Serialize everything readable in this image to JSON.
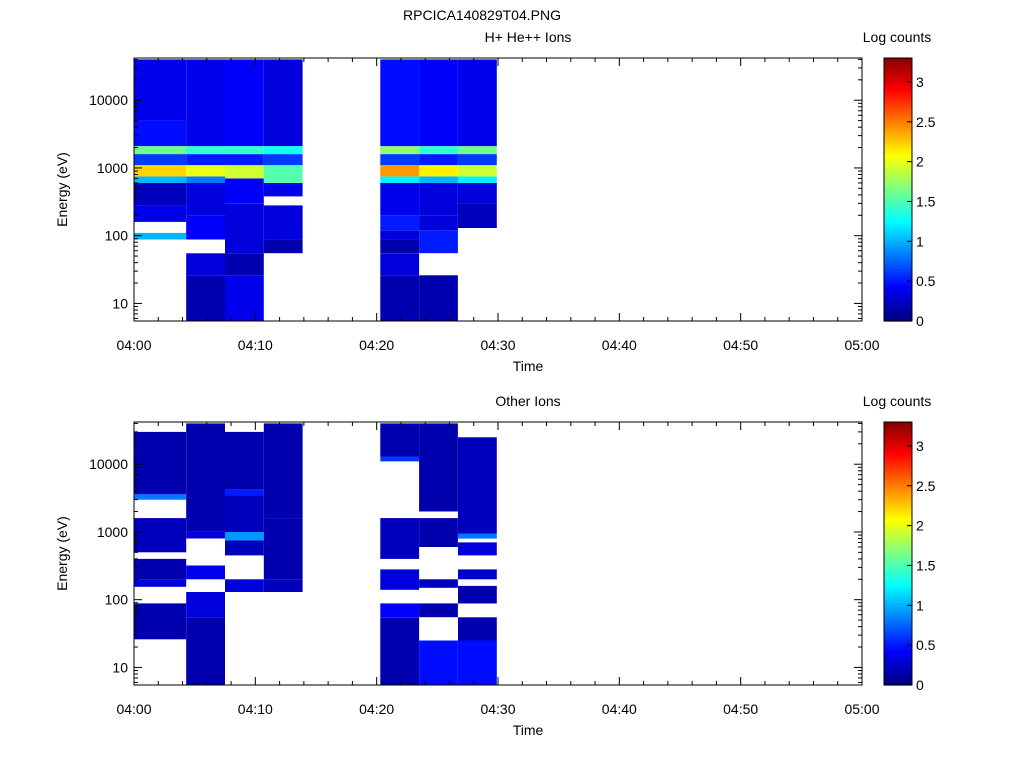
{
  "title": "RPCICA140829T04.PNG",
  "chart_data": [
    {
      "type": "heatmap",
      "title": "H+ He++ Ions",
      "xlabel": "Time",
      "ylabel": "Energy (eV)",
      "x_range": [
        "04:00",
        "05:00"
      ],
      "x_ticks": [
        "04:00",
        "04:10",
        "04:20",
        "04:30",
        "04:40",
        "04:50",
        "05:00"
      ],
      "y_scale": "log",
      "y_range": [
        5.5,
        42000
      ],
      "y_ticks": [
        "10",
        "100",
        "1000",
        "10000"
      ],
      "colorbar": {
        "label": "Log counts",
        "range": [
          0,
          3.3
        ],
        "ticks": [
          "0",
          "0.5",
          "1",
          "1.5",
          "2",
          "2.5",
          "3"
        ]
      },
      "columns": [
        {
          "t_start": 0.0,
          "t_end": 4.3,
          "cells": [
            {
              "e_min": 88,
              "e_max": 110,
              "level": 1.0
            },
            {
              "e_min": 160,
              "e_max": 280,
              "level": 0.35
            },
            {
              "e_min": 280,
              "e_max": 600,
              "level": 0.2
            },
            {
              "e_min": 600,
              "e_max": 750,
              "level": 1.0
            },
            {
              "e_min": 750,
              "e_max": 1100,
              "level": 2.2
            },
            {
              "e_min": 1100,
              "e_max": 1600,
              "level": 0.6
            },
            {
              "e_min": 1600,
              "e_max": 2100,
              "level": 1.6
            },
            {
              "e_min": 2100,
              "e_max": 5000,
              "level": 0.45
            },
            {
              "e_min": 5000,
              "e_max": 40000,
              "level": 0.35
            }
          ]
        },
        {
          "t_start": 4.3,
          "t_end": 7.5,
          "cells": [
            {
              "e_min": 5.5,
              "e_max": 26,
              "level": 0.15
            },
            {
              "e_min": 26,
              "e_max": 55,
              "level": 0.3
            },
            {
              "e_min": 88,
              "e_max": 200,
              "level": 0.4
            },
            {
              "e_min": 200,
              "e_max": 600,
              "level": 0.3
            },
            {
              "e_min": 600,
              "e_max": 750,
              "level": 0.8
            },
            {
              "e_min": 750,
              "e_max": 1100,
              "level": 2.0
            },
            {
              "e_min": 1100,
              "e_max": 1600,
              "level": 0.5
            },
            {
              "e_min": 1600,
              "e_max": 2100,
              "level": 1.4
            },
            {
              "e_min": 2100,
              "e_max": 40000,
              "level": 0.35
            }
          ]
        },
        {
          "t_start": 7.5,
          "t_end": 10.7,
          "cells": [
            {
              "e_min": 5.5,
              "e_max": 26,
              "level": 0.35
            },
            {
              "e_min": 26,
              "e_max": 55,
              "level": 0.15
            },
            {
              "e_min": 55,
              "e_max": 300,
              "level": 0.3
            },
            {
              "e_min": 300,
              "e_max": 700,
              "level": 0.4
            },
            {
              "e_min": 700,
              "e_max": 1100,
              "level": 1.9
            },
            {
              "e_min": 1100,
              "e_max": 1600,
              "level": 0.5
            },
            {
              "e_min": 1600,
              "e_max": 2100,
              "level": 1.4
            },
            {
              "e_min": 2100,
              "e_max": 40000,
              "level": 0.4
            }
          ]
        },
        {
          "t_start": 10.7,
          "t_end": 13.9,
          "cells": [
            {
              "e_min": 55,
              "e_max": 88,
              "level": 0.15
            },
            {
              "e_min": 88,
              "e_max": 280,
              "level": 0.3
            },
            {
              "e_min": 380,
              "e_max": 600,
              "level": 0.35
            },
            {
              "e_min": 600,
              "e_max": 1100,
              "level": 1.5
            },
            {
              "e_min": 1100,
              "e_max": 1600,
              "level": 0.6
            },
            {
              "e_min": 1600,
              "e_max": 2100,
              "level": 1.3
            },
            {
              "e_min": 2100,
              "e_max": 40000,
              "level": 0.3
            }
          ]
        },
        {
          "t_start": 20.3,
          "t_end": 23.5,
          "cells": [
            {
              "e_min": 5.5,
              "e_max": 26,
              "level": 0.15
            },
            {
              "e_min": 26,
              "e_max": 55,
              "level": 0.3
            },
            {
              "e_min": 55,
              "e_max": 88,
              "level": 0.15
            },
            {
              "e_min": 88,
              "e_max": 120,
              "level": 0.3
            },
            {
              "e_min": 120,
              "e_max": 200,
              "level": 0.5
            },
            {
              "e_min": 200,
              "e_max": 600,
              "level": 0.35
            },
            {
              "e_min": 600,
              "e_max": 750,
              "level": 1.2
            },
            {
              "e_min": 750,
              "e_max": 1100,
              "level": 2.4
            },
            {
              "e_min": 1100,
              "e_max": 1600,
              "level": 0.6
            },
            {
              "e_min": 1600,
              "e_max": 2100,
              "level": 1.7
            },
            {
              "e_min": 2100,
              "e_max": 40000,
              "level": 0.45
            }
          ]
        },
        {
          "t_start": 23.5,
          "t_end": 26.7,
          "cells": [
            {
              "e_min": 5.5,
              "e_max": 26,
              "level": 0.15
            },
            {
              "e_min": 55,
              "e_max": 120,
              "level": 0.5
            },
            {
              "e_min": 120,
              "e_max": 200,
              "level": 0.3
            },
            {
              "e_min": 200,
              "e_max": 600,
              "level": 0.3
            },
            {
              "e_min": 600,
              "e_max": 750,
              "level": 1.0
            },
            {
              "e_min": 750,
              "e_max": 1100,
              "level": 2.1
            },
            {
              "e_min": 1100,
              "e_max": 1600,
              "level": 0.5
            },
            {
              "e_min": 1600,
              "e_max": 2100,
              "level": 1.4
            },
            {
              "e_min": 2100,
              "e_max": 40000,
              "level": 0.4
            }
          ]
        },
        {
          "t_start": 26.7,
          "t_end": 29.9,
          "cells": [
            {
              "e_min": 130,
              "e_max": 300,
              "level": 0.2
            },
            {
              "e_min": 300,
              "e_max": 600,
              "level": 0.3
            },
            {
              "e_min": 600,
              "e_max": 750,
              "level": 1.2
            },
            {
              "e_min": 750,
              "e_max": 1100,
              "level": 1.9
            },
            {
              "e_min": 1100,
              "e_max": 1600,
              "level": 0.6
            },
            {
              "e_min": 1600,
              "e_max": 2100,
              "level": 1.6
            },
            {
              "e_min": 2100,
              "e_max": 40000,
              "level": 0.35
            }
          ]
        }
      ]
    },
    {
      "type": "heatmap",
      "title": "Other Ions",
      "xlabel": "Time",
      "ylabel": "Energy (eV)",
      "x_range": [
        "04:00",
        "05:00"
      ],
      "x_ticks": [
        "04:00",
        "04:10",
        "04:20",
        "04:30",
        "04:40",
        "04:50",
        "05:00"
      ],
      "y_scale": "log",
      "y_range": [
        5.5,
        42000
      ],
      "y_ticks": [
        "10",
        "100",
        "1000",
        "10000"
      ],
      "colorbar": {
        "label": "Log counts",
        "range": [
          0,
          3.3
        ],
        "ticks": [
          "0",
          "0.5",
          "1",
          "1.5",
          "2",
          "2.5",
          "3"
        ]
      },
      "columns": [
        {
          "t_start": 0.0,
          "t_end": 4.3,
          "cells": [
            {
              "e_min": 26,
              "e_max": 88,
              "level": 0.15
            },
            {
              "e_min": 155,
              "e_max": 200,
              "level": 0.3
            },
            {
              "e_min": 200,
              "e_max": 400,
              "level": 0.15
            },
            {
              "e_min": 500,
              "e_max": 1600,
              "level": 0.2
            },
            {
              "e_min": 3000,
              "e_max": 3600,
              "level": 0.8
            },
            {
              "e_min": 3600,
              "e_max": 30000,
              "level": 0.15
            }
          ]
        },
        {
          "t_start": 4.3,
          "t_end": 7.5,
          "cells": [
            {
              "e_min": 5.5,
              "e_max": 55,
              "level": 0.15
            },
            {
              "e_min": 55,
              "e_max": 130,
              "level": 0.3
            },
            {
              "e_min": 200,
              "e_max": 320,
              "level": 0.35
            },
            {
              "e_min": 800,
              "e_max": 1000,
              "level": 0.3
            },
            {
              "e_min": 1000,
              "e_max": 40000,
              "level": 0.15
            }
          ]
        },
        {
          "t_start": 7.5,
          "t_end": 10.7,
          "cells": [
            {
              "e_min": 130,
              "e_max": 200,
              "level": 0.3
            },
            {
              "e_min": 450,
              "e_max": 750,
              "level": 0.2
            },
            {
              "e_min": 750,
              "e_max": 1000,
              "level": 0.9
            },
            {
              "e_min": 1000,
              "e_max": 3500,
              "level": 0.2
            },
            {
              "e_min": 3500,
              "e_max": 4200,
              "level": 0.5
            },
            {
              "e_min": 4200,
              "e_max": 30000,
              "level": 0.15
            }
          ]
        },
        {
          "t_start": 10.7,
          "t_end": 13.9,
          "cells": [
            {
              "e_min": 130,
              "e_max": 200,
              "level": 0.2
            },
            {
              "e_min": 200,
              "e_max": 1600,
              "level": 0.15
            },
            {
              "e_min": 1600,
              "e_max": 40000,
              "level": 0.15
            }
          ]
        },
        {
          "t_start": 20.3,
          "t_end": 23.5,
          "cells": [
            {
              "e_min": 5.5,
              "e_max": 55,
              "level": 0.15
            },
            {
              "e_min": 55,
              "e_max": 88,
              "level": 0.4
            },
            {
              "e_min": 140,
              "e_max": 280,
              "level": 0.3
            },
            {
              "e_min": 400,
              "e_max": 1600,
              "level": 0.2
            },
            {
              "e_min": 11000,
              "e_max": 13000,
              "level": 0.6
            },
            {
              "e_min": 13000,
              "e_max": 40000,
              "level": 0.15
            }
          ]
        },
        {
          "t_start": 23.5,
          "t_end": 26.7,
          "cells": [
            {
              "e_min": 5.5,
              "e_max": 25,
              "level": 0.45
            },
            {
              "e_min": 55,
              "e_max": 88,
              "level": 0.15
            },
            {
              "e_min": 150,
              "e_max": 200,
              "level": 0.2
            },
            {
              "e_min": 600,
              "e_max": 1600,
              "level": 0.15
            },
            {
              "e_min": 2000,
              "e_max": 40000,
              "level": 0.15
            }
          ]
        },
        {
          "t_start": 26.7,
          "t_end": 29.9,
          "cells": [
            {
              "e_min": 5.5,
              "e_max": 25,
              "level": 0.45
            },
            {
              "e_min": 25,
              "e_max": 55,
              "level": 0.15
            },
            {
              "e_min": 88,
              "e_max": 160,
              "level": 0.15
            },
            {
              "e_min": 200,
              "e_max": 280,
              "level": 0.25
            },
            {
              "e_min": 450,
              "e_max": 700,
              "level": 0.3
            },
            {
              "e_min": 800,
              "e_max": 950,
              "level": 0.8
            },
            {
              "e_min": 950,
              "e_max": 25000,
              "level": 0.2
            }
          ]
        }
      ]
    }
  ]
}
